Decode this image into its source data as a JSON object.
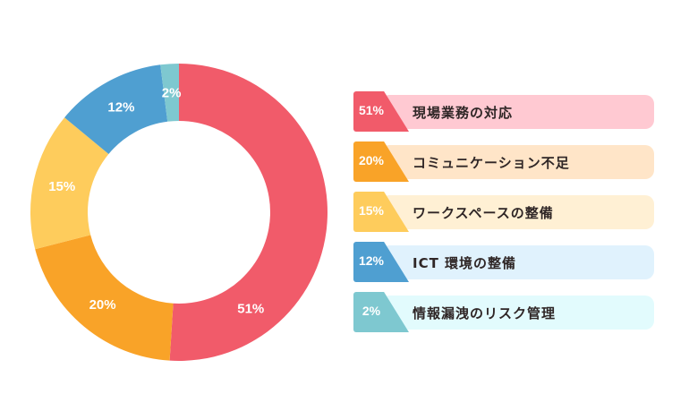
{
  "chart_data": {
    "type": "pie",
    "donut": true,
    "start": "top",
    "direction": "clockwise",
    "categories": [
      "現場業務の対応",
      "コミュニケーション不足",
      "ワークスペースの整備",
      "ICT 環境の整備",
      "情報漏洩のリスク管理"
    ],
    "values": [
      51,
      20,
      15,
      12,
      2
    ],
    "value_labels": [
      "51%",
      "20%",
      "15%",
      "12%",
      "2%"
    ],
    "colors": [
      "#f15b6a",
      "#f9a328",
      "#fecc5c",
      "#4f9fd1",
      "#7ec8d0"
    ],
    "pill_colors": [
      "#ffc9d2",
      "#ffe5c8",
      "#fff0d4",
      "#e0f2fd",
      "#e2fbfd"
    ],
    "legend_position": "right"
  }
}
